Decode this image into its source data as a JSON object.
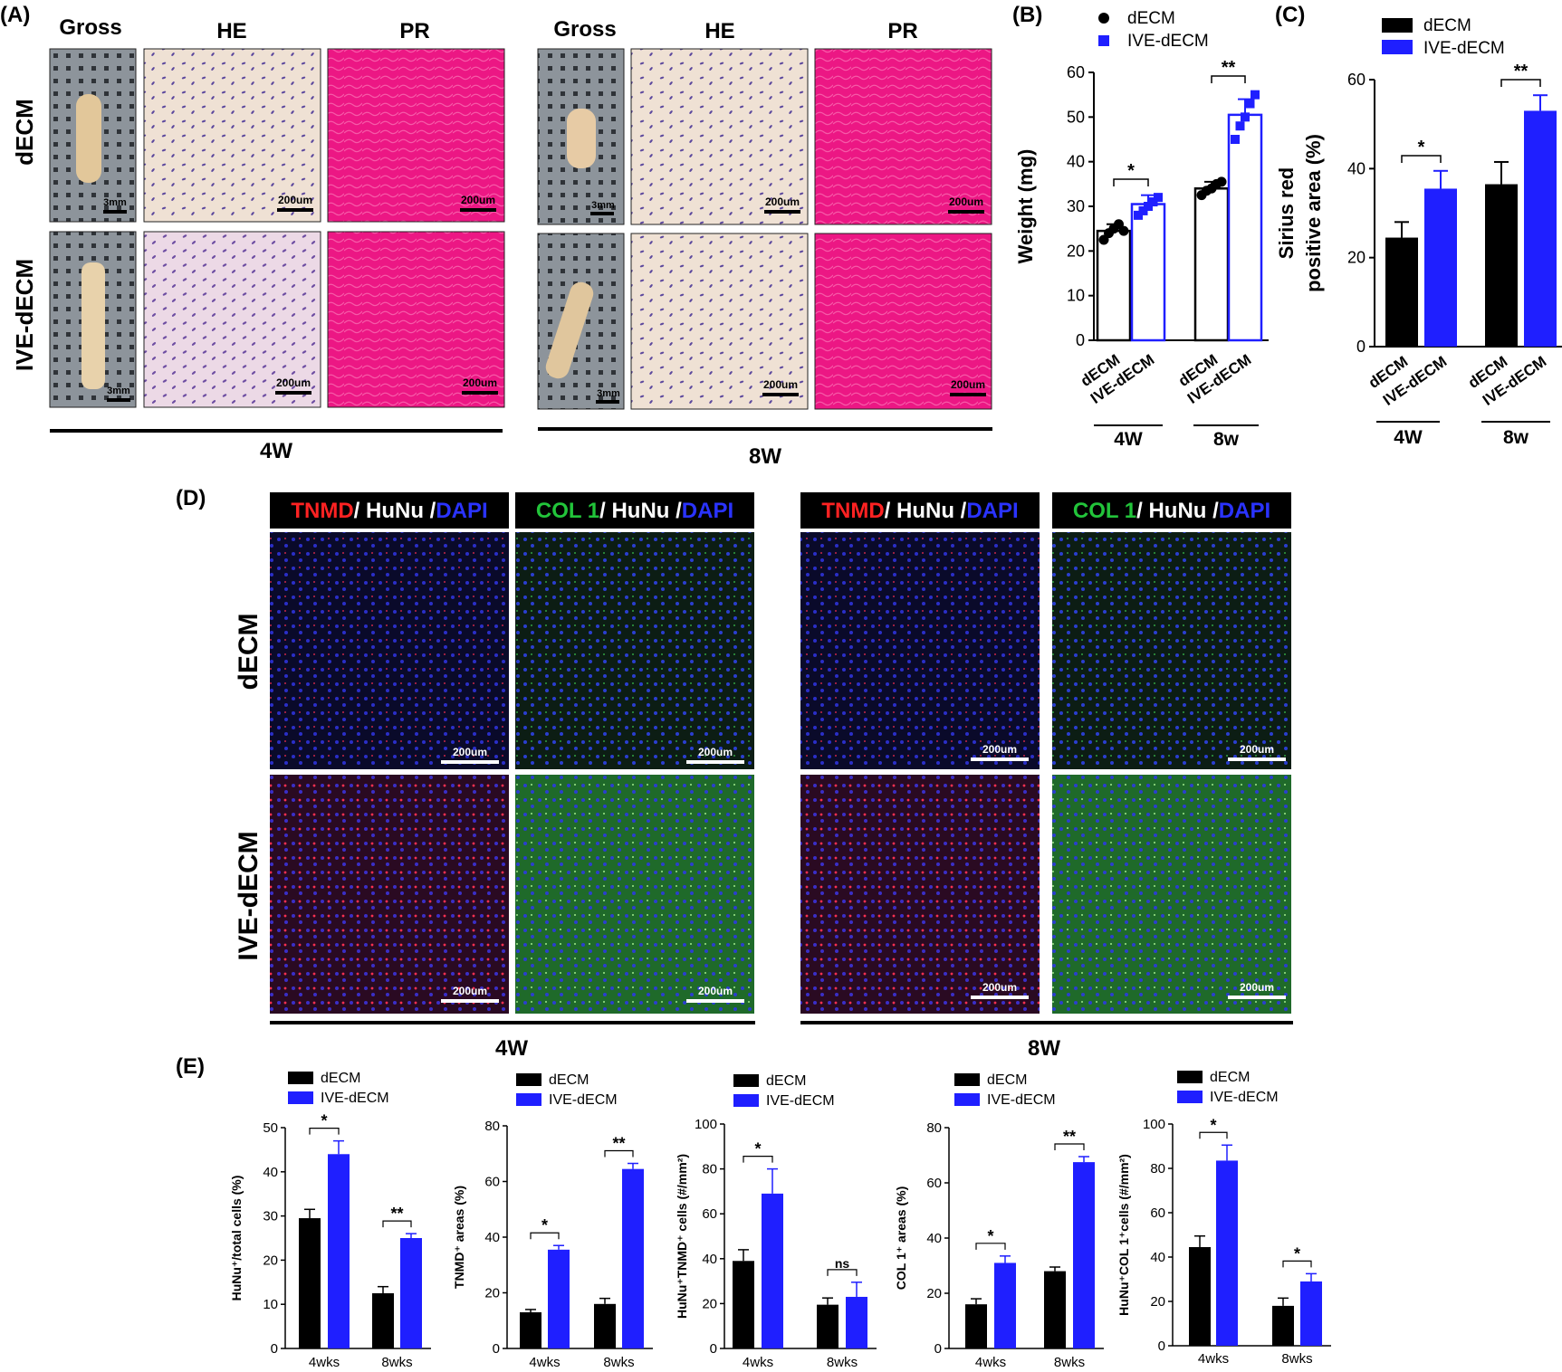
{
  "panel_labels": {
    "A": "(A)",
    "B": "(B)",
    "C": "(C)",
    "D": "(D)",
    "E": "(E)"
  },
  "panelA": {
    "col_headers": [
      "Gross",
      "HE",
      "PR"
    ],
    "row_labels": [
      "dECM",
      "IVE-dECM"
    ],
    "scale_gross": "3mm",
    "scale_micro": "200um",
    "groups": [
      "4W",
      "8W"
    ]
  },
  "panelD": {
    "headers": [
      [
        {
          "t": "TNMD",
          "c": "#ff2222"
        },
        {
          "t": "/ HuNu /",
          "c": "#ffffff"
        },
        {
          "t": "DAPI",
          "c": "#2a33ff"
        }
      ],
      [
        {
          "t": "COL 1",
          "c": "#22c43a"
        },
        {
          "t": "/ HuNu /",
          "c": "#ffffff"
        },
        {
          "t": "DAPI",
          "c": "#2a33ff"
        }
      ]
    ],
    "row_labels": [
      "dECM",
      "IVE-dECM"
    ],
    "scale": "200um",
    "groups": [
      "4W",
      "8W"
    ]
  },
  "colors": {
    "decm": "#000000",
    "ive": "#1f1fff",
    "pr": "#f0108a",
    "he": "#e9d7e8"
  },
  "chart_data": [
    {
      "id": "B",
      "type": "bar",
      "legend": [
        "dECM",
        "IVE-dECM"
      ],
      "ylabel": "Weight (mg)",
      "ylim": [
        0,
        60
      ],
      "yticks": [
        0,
        10,
        20,
        30,
        40,
        50,
        60
      ],
      "categories": [
        "dECM",
        "IVE-dECM",
        "dECM",
        "IVE-dECM"
      ],
      "groups": [
        "4W",
        "8w"
      ],
      "values": [
        24.5,
        30.5,
        34,
        50.5
      ],
      "errors": [
        1.5,
        2,
        1.5,
        3.5
      ],
      "points": [
        [
          22.5,
          24,
          25,
          26,
          24.5
        ],
        [
          28,
          29,
          30,
          31,
          32
        ],
        [
          32.5,
          33.5,
          34,
          35,
          35.5
        ],
        [
          45,
          48,
          50,
          53,
          55
        ]
      ],
      "significance": [
        "*",
        "**"
      ]
    },
    {
      "id": "C",
      "type": "bar",
      "legend": [
        "dECM",
        "IVE-dECM"
      ],
      "ylabel": [
        "Sirius red",
        "positive area (%)"
      ],
      "ylim": [
        0,
        60
      ],
      "yticks": [
        0,
        20,
        40,
        60
      ],
      "categories": [
        "dECM",
        "IVE-dECM",
        "dECM",
        "IVE-dECM"
      ],
      "groups": [
        "4W",
        "8w"
      ],
      "values": [
        24.5,
        35.5,
        36.5,
        53
      ],
      "errors": [
        3.5,
        4,
        5,
        3.5
      ],
      "significance": [
        "*",
        "**"
      ]
    },
    {
      "id": "E1",
      "type": "bar",
      "legend": [
        "dECM",
        "IVE-dECM"
      ],
      "ylabel": "HuNu⁺/total cells (%)",
      "ylim": [
        0,
        50
      ],
      "yticks": [
        0,
        10,
        20,
        30,
        40,
        50
      ],
      "categories": [
        "4wks",
        "8wks"
      ],
      "series": [
        {
          "name": "dECM",
          "values": [
            29.5,
            12.5
          ],
          "errors": [
            2,
            1.5
          ]
        },
        {
          "name": "IVE-dECM",
          "values": [
            44,
            25
          ],
          "errors": [
            3,
            1
          ]
        }
      ],
      "significance": [
        "*",
        "**"
      ]
    },
    {
      "id": "E2",
      "type": "bar",
      "legend": [
        "dECM",
        "IVE-dECM"
      ],
      "ylabel": "TNMD⁺ areas (%)",
      "ylim": [
        0,
        80
      ],
      "yticks": [
        0,
        20,
        40,
        60,
        80
      ],
      "categories": [
        "4wks",
        "8wks"
      ],
      "series": [
        {
          "name": "dECM",
          "values": [
            13,
            16
          ],
          "errors": [
            1,
            2
          ]
        },
        {
          "name": "IVE-dECM",
          "values": [
            35.5,
            64.5
          ],
          "errors": [
            1.5,
            2
          ]
        }
      ],
      "significance": [
        "*",
        "**"
      ]
    },
    {
      "id": "E3",
      "type": "bar",
      "legend": [
        "dECM",
        "IVE-dECM"
      ],
      "ylabel": "HuNu⁺TNMD⁺ cells (#/mm²)",
      "ylim": [
        0,
        100
      ],
      "yticks": [
        0,
        20,
        40,
        60,
        80,
        100
      ],
      "categories": [
        "4wks",
        "8wks"
      ],
      "series": [
        {
          "name": "dECM",
          "values": [
            39,
            19.5
          ],
          "errors": [
            5,
            3
          ]
        },
        {
          "name": "IVE-dECM",
          "values": [
            69,
            23
          ],
          "errors": [
            11,
            6.5
          ]
        }
      ],
      "significance": [
        "*",
        "ns"
      ]
    },
    {
      "id": "E4",
      "type": "bar",
      "legend": [
        "dECM",
        "IVE-dECM"
      ],
      "ylabel": "COL 1⁺ areas (%)",
      "ylim": [
        0,
        80
      ],
      "yticks": [
        0,
        20,
        40,
        60,
        80
      ],
      "categories": [
        "4wks",
        "8wks"
      ],
      "series": [
        {
          "name": "dECM",
          "values": [
            16,
            28
          ],
          "errors": [
            2,
            1.5
          ]
        },
        {
          "name": "IVE-dECM",
          "values": [
            31,
            67.5
          ],
          "errors": [
            2.5,
            2
          ]
        }
      ],
      "significance": [
        "*",
        "**"
      ]
    },
    {
      "id": "E5",
      "type": "bar",
      "legend": [
        "dECM",
        "IVE-dECM"
      ],
      "ylabel": "HuNu⁺COL 1⁺cells (#/mm²)",
      "ylim": [
        0,
        100
      ],
      "yticks": [
        0,
        20,
        40,
        60,
        80,
        100
      ],
      "categories": [
        "4wks",
        "8wks"
      ],
      "series": [
        {
          "name": "dECM",
          "values": [
            44.5,
            18
          ],
          "errors": [
            5,
            3.5
          ]
        },
        {
          "name": "IVE-dECM",
          "values": [
            83.5,
            29
          ],
          "errors": [
            7,
            3.5
          ]
        }
      ],
      "significance": [
        "*",
        "*"
      ]
    }
  ]
}
